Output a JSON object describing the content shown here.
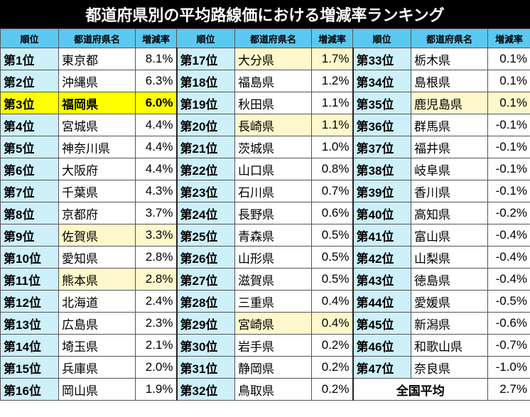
{
  "title": "都道府県別の平均路線価における増減率ランキング",
  "table": {
    "headers": [
      "順位",
      "都道府県名",
      "増減率"
    ],
    "rows": [
      {
        "rank": "第1位",
        "name": "東京都",
        "rate": "8.1%"
      },
      {
        "rank": "第2位",
        "name": "沖縄県",
        "rate": "6.3%"
      },
      {
        "rank": "第3位",
        "name": "福岡県",
        "rate": "6.0%",
        "fill": "#ffff00"
      },
      {
        "rank": "第4位",
        "name": "宮城県",
        "rate": "4.4%"
      },
      {
        "rank": "第5位",
        "name": "神奈川県",
        "rate": "4.4%"
      },
      {
        "rank": "第6位",
        "name": "大阪府",
        "rate": "4.4%"
      },
      {
        "rank": "第7位",
        "name": "千葉県",
        "rate": "4.3%"
      },
      {
        "rank": "第8位",
        "name": "京都府",
        "rate": "3.7%"
      },
      {
        "rank": "第9位",
        "name": "佐賀県",
        "rate": "3.3%",
        "fill": "#fff8cc"
      },
      {
        "rank": "第10位",
        "name": "愛知県",
        "rate": "2.8%"
      },
      {
        "rank": "第11位",
        "name": "熊本県",
        "rate": "2.8%",
        "fill": "#fff8cc"
      },
      {
        "rank": "第12位",
        "name": "北海道",
        "rate": "2.4%"
      },
      {
        "rank": "第13位",
        "name": "広島県",
        "rate": "2.3%"
      },
      {
        "rank": "第14位",
        "name": "埼玉県",
        "rate": "2.1%"
      },
      {
        "rank": "第15位",
        "name": "兵庫県",
        "rate": "2.0%"
      },
      {
        "rank": "第16位",
        "name": "岡山県",
        "rate": "1.9%"
      },
      {
        "rank": "第17位",
        "name": "大分県",
        "rate": "1.7%",
        "fill": "#fff8cc"
      },
      {
        "rank": "第18位",
        "name": "福島県",
        "rate": "1.2%"
      },
      {
        "rank": "第19位",
        "name": "秋田県",
        "rate": "1.1%"
      },
      {
        "rank": "第20位",
        "name": "長崎県",
        "rate": "1.1%",
        "fill": "#fff8cc"
      },
      {
        "rank": "第21位",
        "name": "茨城県",
        "rate": "1.0%"
      },
      {
        "rank": "第22位",
        "name": "山口県",
        "rate": "0.8%"
      },
      {
        "rank": "第23位",
        "name": "石川県",
        "rate": "0.7%"
      },
      {
        "rank": "第24位",
        "name": "長野県",
        "rate": "0.6%"
      },
      {
        "rank": "第25位",
        "name": "青森県",
        "rate": "0.5%"
      },
      {
        "rank": "第26位",
        "name": "山形県",
        "rate": "0.5%"
      },
      {
        "rank": "第27位",
        "name": "滋賀県",
        "rate": "0.5%"
      },
      {
        "rank": "第28位",
        "name": "三重県",
        "rate": "0.4%"
      },
      {
        "rank": "第29位",
        "name": "宮崎県",
        "rate": "0.4%",
        "fill": "#fff8cc"
      },
      {
        "rank": "第30位",
        "name": "岩手県",
        "rate": "0.2%"
      },
      {
        "rank": "第31位",
        "name": "静岡県",
        "rate": "0.2%"
      },
      {
        "rank": "第32位",
        "name": "鳥取県",
        "rate": "0.2%"
      },
      {
        "rank": "第33位",
        "name": "栃木県",
        "rate": "0.1%"
      },
      {
        "rank": "第34位",
        "name": "島根県",
        "rate": "0.1%"
      },
      {
        "rank": "第35位",
        "name": "鹿児島県",
        "rate": "0.1%",
        "fill": "#fff8cc"
      },
      {
        "rank": "第36位",
        "name": "群馬県",
        "rate": "-0.1%"
      },
      {
        "rank": "第37位",
        "name": "福井県",
        "rate": "-0.1%"
      },
      {
        "rank": "第38位",
        "name": "岐阜県",
        "rate": "-0.1%"
      },
      {
        "rank": "第39位",
        "name": "香川県",
        "rate": "-0.1%"
      },
      {
        "rank": "第40位",
        "name": "高知県",
        "rate": "-0.2%"
      },
      {
        "rank": "第41位",
        "name": "富山県",
        "rate": "-0.4%"
      },
      {
        "rank": "第42位",
        "name": "山梨県",
        "rate": "-0.4%"
      },
      {
        "rank": "第43位",
        "name": "徳島県",
        "rate": "-0.4%"
      },
      {
        "rank": "第44位",
        "name": "愛媛県",
        "rate": "-0.5%"
      },
      {
        "rank": "第45位",
        "name": "新潟県",
        "rate": "-0.6%"
      },
      {
        "rank": "第46位",
        "name": "和歌山県",
        "rate": "-0.7%"
      },
      {
        "rank": "第47位",
        "name": "奈良県",
        "rate": "-1.0%"
      }
    ],
    "average": {
      "label": "全国平均",
      "rate": "2.7%"
    }
  }
}
